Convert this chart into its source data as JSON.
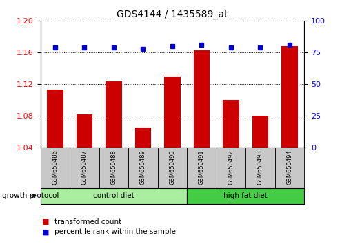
{
  "title": "GDS4144 / 1435589_at",
  "samples": [
    "GSM650486",
    "GSM650487",
    "GSM650488",
    "GSM650489",
    "GSM650490",
    "GSM650491",
    "GSM650492",
    "GSM650493",
    "GSM650494"
  ],
  "red_values": [
    1.113,
    1.082,
    1.124,
    1.065,
    1.13,
    1.163,
    1.1,
    1.08,
    1.168
  ],
  "blue_values": [
    79,
    79,
    79,
    78,
    80,
    81,
    79,
    79,
    81
  ],
  "ylim_left": [
    1.04,
    1.2
  ],
  "ylim_right": [
    0,
    100
  ],
  "yticks_left": [
    1.04,
    1.08,
    1.12,
    1.16,
    1.2
  ],
  "yticks_right": [
    0,
    25,
    50,
    75,
    100
  ],
  "bar_color": "#cc0000",
  "dot_color": "#0000cc",
  "bar_width": 0.55,
  "groups": [
    {
      "label": "control diet",
      "start": 0,
      "end": 5,
      "color": "#aaeea0"
    },
    {
      "label": "high fat diet",
      "start": 5,
      "end": 9,
      "color": "#44cc44"
    }
  ],
  "group_label": "growth protocol",
  "legend_red": "transformed count",
  "legend_blue": "percentile rank within the sample",
  "sample_box_color": "#c8c8c8"
}
